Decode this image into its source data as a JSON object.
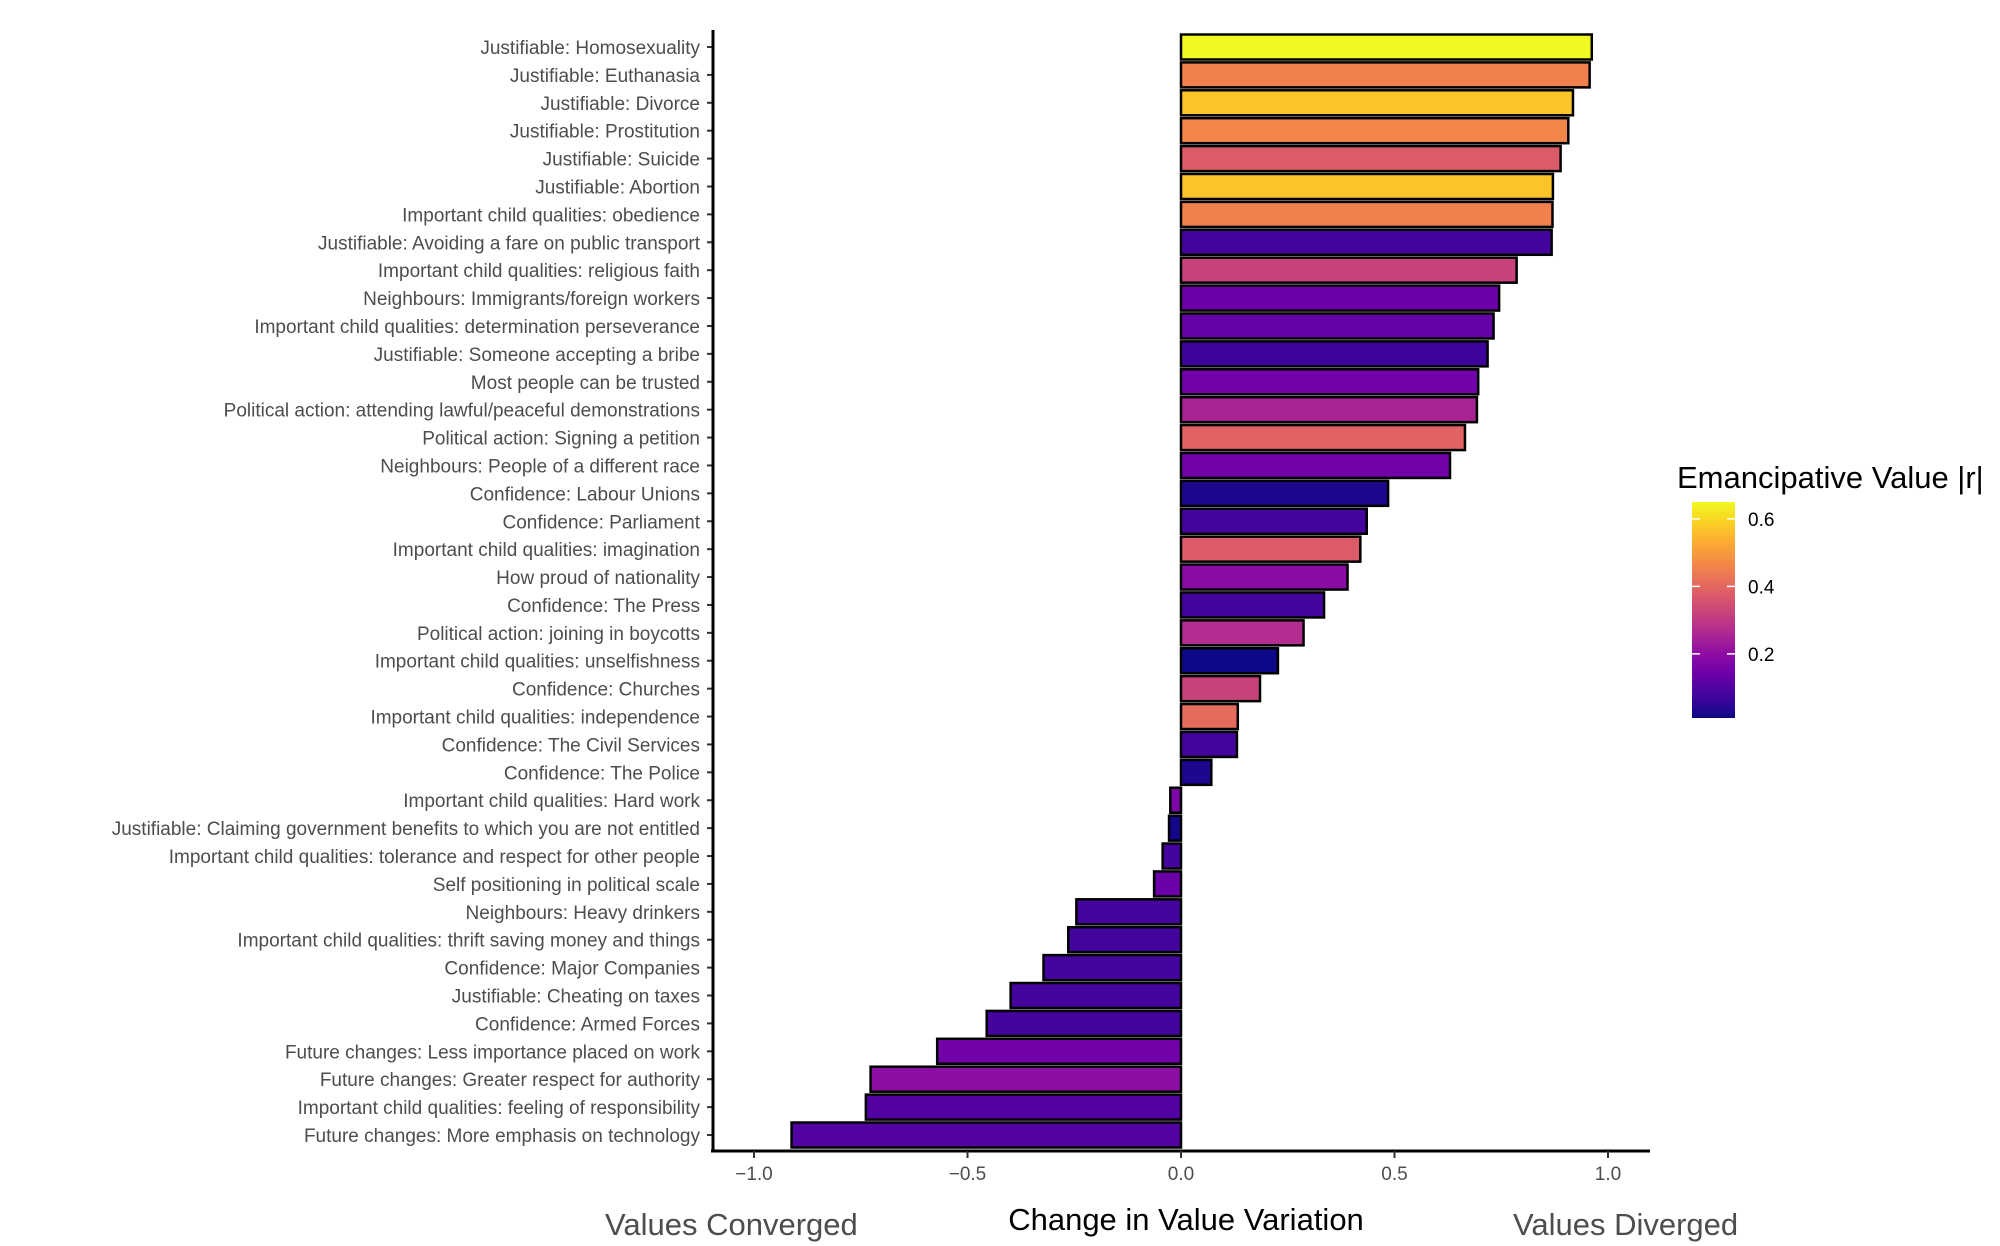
{
  "chart_data": {
    "type": "bar",
    "orientation": "horizontal",
    "xlabel": "Change in Value Variation",
    "xlabel_left": "Values Converged",
    "xlabel_right": "Values Diverged",
    "xlim": [
      -1.1,
      1.1
    ],
    "xticks": [
      -1.0,
      -0.5,
      0.0,
      0.5,
      1.0
    ],
    "xtick_labels": [
      "−1.0",
      "−0.5",
      "0.0",
      "0.5",
      "1.0"
    ],
    "grid": false,
    "legend": {
      "title": "Emancipative Value |r|",
      "placement": "right",
      "colormap": "plasma",
      "range": [
        0.01,
        0.65
      ],
      "ticks": [
        0.2,
        0.4,
        0.6
      ],
      "tick_labels": [
        "0.2",
        "0.4",
        "0.6"
      ]
    },
    "bars": [
      {
        "label": "Justifiable: Homosexuality",
        "value": 0.962,
        "r": 0.65
      },
      {
        "label": "Justifiable: Euthanasia",
        "value": 0.957,
        "r": 0.45
      },
      {
        "label": "Justifiable: Divorce",
        "value": 0.918,
        "r": 0.57
      },
      {
        "label": "Justifiable: Prostitution",
        "value": 0.907,
        "r": 0.46
      },
      {
        "label": "Justifiable: Suicide",
        "value": 0.889,
        "r": 0.375
      },
      {
        "label": "Justifiable: Abortion",
        "value": 0.871,
        "r": 0.57
      },
      {
        "label": "Important child qualities: obedience",
        "value": 0.87,
        "r": 0.45
      },
      {
        "label": "Justifiable: Avoiding a fare on public transport",
        "value": 0.868,
        "r": 0.08
      },
      {
        "label": "Important child qualities: religious faith",
        "value": 0.786,
        "r": 0.32
      },
      {
        "label": "Neighbours: Immigrants/foreign workers",
        "value": 0.745,
        "r": 0.14
      },
      {
        "label": "Important child qualities: determination perseverance",
        "value": 0.732,
        "r": 0.13
      },
      {
        "label": "Justifiable: Someone accepting a bribe",
        "value": 0.718,
        "r": 0.07
      },
      {
        "label": "Most people can be trusted",
        "value": 0.696,
        "r": 0.15
      },
      {
        "label": "Political action: attending lawful/peaceful demonstrations",
        "value": 0.693,
        "r": 0.25
      },
      {
        "label": "Political action: Signing a petition",
        "value": 0.665,
        "r": 0.39
      },
      {
        "label": "Neighbours: People of a different race",
        "value": 0.63,
        "r": 0.15
      },
      {
        "label": "Confidence: Labour Unions",
        "value": 0.485,
        "r": 0.03
      },
      {
        "label": "Confidence: Parliament",
        "value": 0.435,
        "r": 0.08
      },
      {
        "label": "Important child qualities: imagination",
        "value": 0.42,
        "r": 0.375
      },
      {
        "label": "How proud of nationality",
        "value": 0.39,
        "r": 0.195
      },
      {
        "label": "Confidence: The Press",
        "value": 0.335,
        "r": 0.08
      },
      {
        "label": "Political action: joining in boycotts",
        "value": 0.287,
        "r": 0.27
      },
      {
        "label": "Important child qualities: unselfishness",
        "value": 0.227,
        "r": 0.01
      },
      {
        "label": "Confidence: Churches",
        "value": 0.185,
        "r": 0.32
      },
      {
        "label": "Important child qualities: independence",
        "value": 0.133,
        "r": 0.41
      },
      {
        "label": "Confidence: The Civil Services",
        "value": 0.131,
        "r": 0.08
      },
      {
        "label": "Confidence: The Police",
        "value": 0.071,
        "r": 0.03
      },
      {
        "label": "Important child qualities: Hard work",
        "value": -0.025,
        "r": 0.17
      },
      {
        "label": "Justifiable: Claiming government benefits to which you are not entitled",
        "value": -0.028,
        "r": 0.02
      },
      {
        "label": "Important child qualities: tolerance and respect for other people",
        "value": -0.043,
        "r": 0.08
      },
      {
        "label": "Self positioning in political scale",
        "value": -0.063,
        "r": 0.14
      },
      {
        "label": "Neighbours: Heavy drinkers",
        "value": -0.245,
        "r": 0.08
      },
      {
        "label": "Important child qualities: thrift saving money and things",
        "value": -0.264,
        "r": 0.075
      },
      {
        "label": "Confidence: Major Companies",
        "value": -0.322,
        "r": 0.08
      },
      {
        "label": "Justifiable: Cheating on taxes",
        "value": -0.399,
        "r": 0.08
      },
      {
        "label": "Confidence: Armed Forces",
        "value": -0.455,
        "r": 0.08
      },
      {
        "label": "Future changes: Less importance placed on work",
        "value": -0.571,
        "r": 0.15
      },
      {
        "label": "Future changes: Greater respect for authority",
        "value": -0.727,
        "r": 0.2
      },
      {
        "label": "Important child qualities: feeling of responsibility",
        "value": -0.738,
        "r": 0.1
      },
      {
        "label": "Future changes: More emphasis on technology",
        "value": -0.912,
        "r": 0.1
      }
    ]
  }
}
